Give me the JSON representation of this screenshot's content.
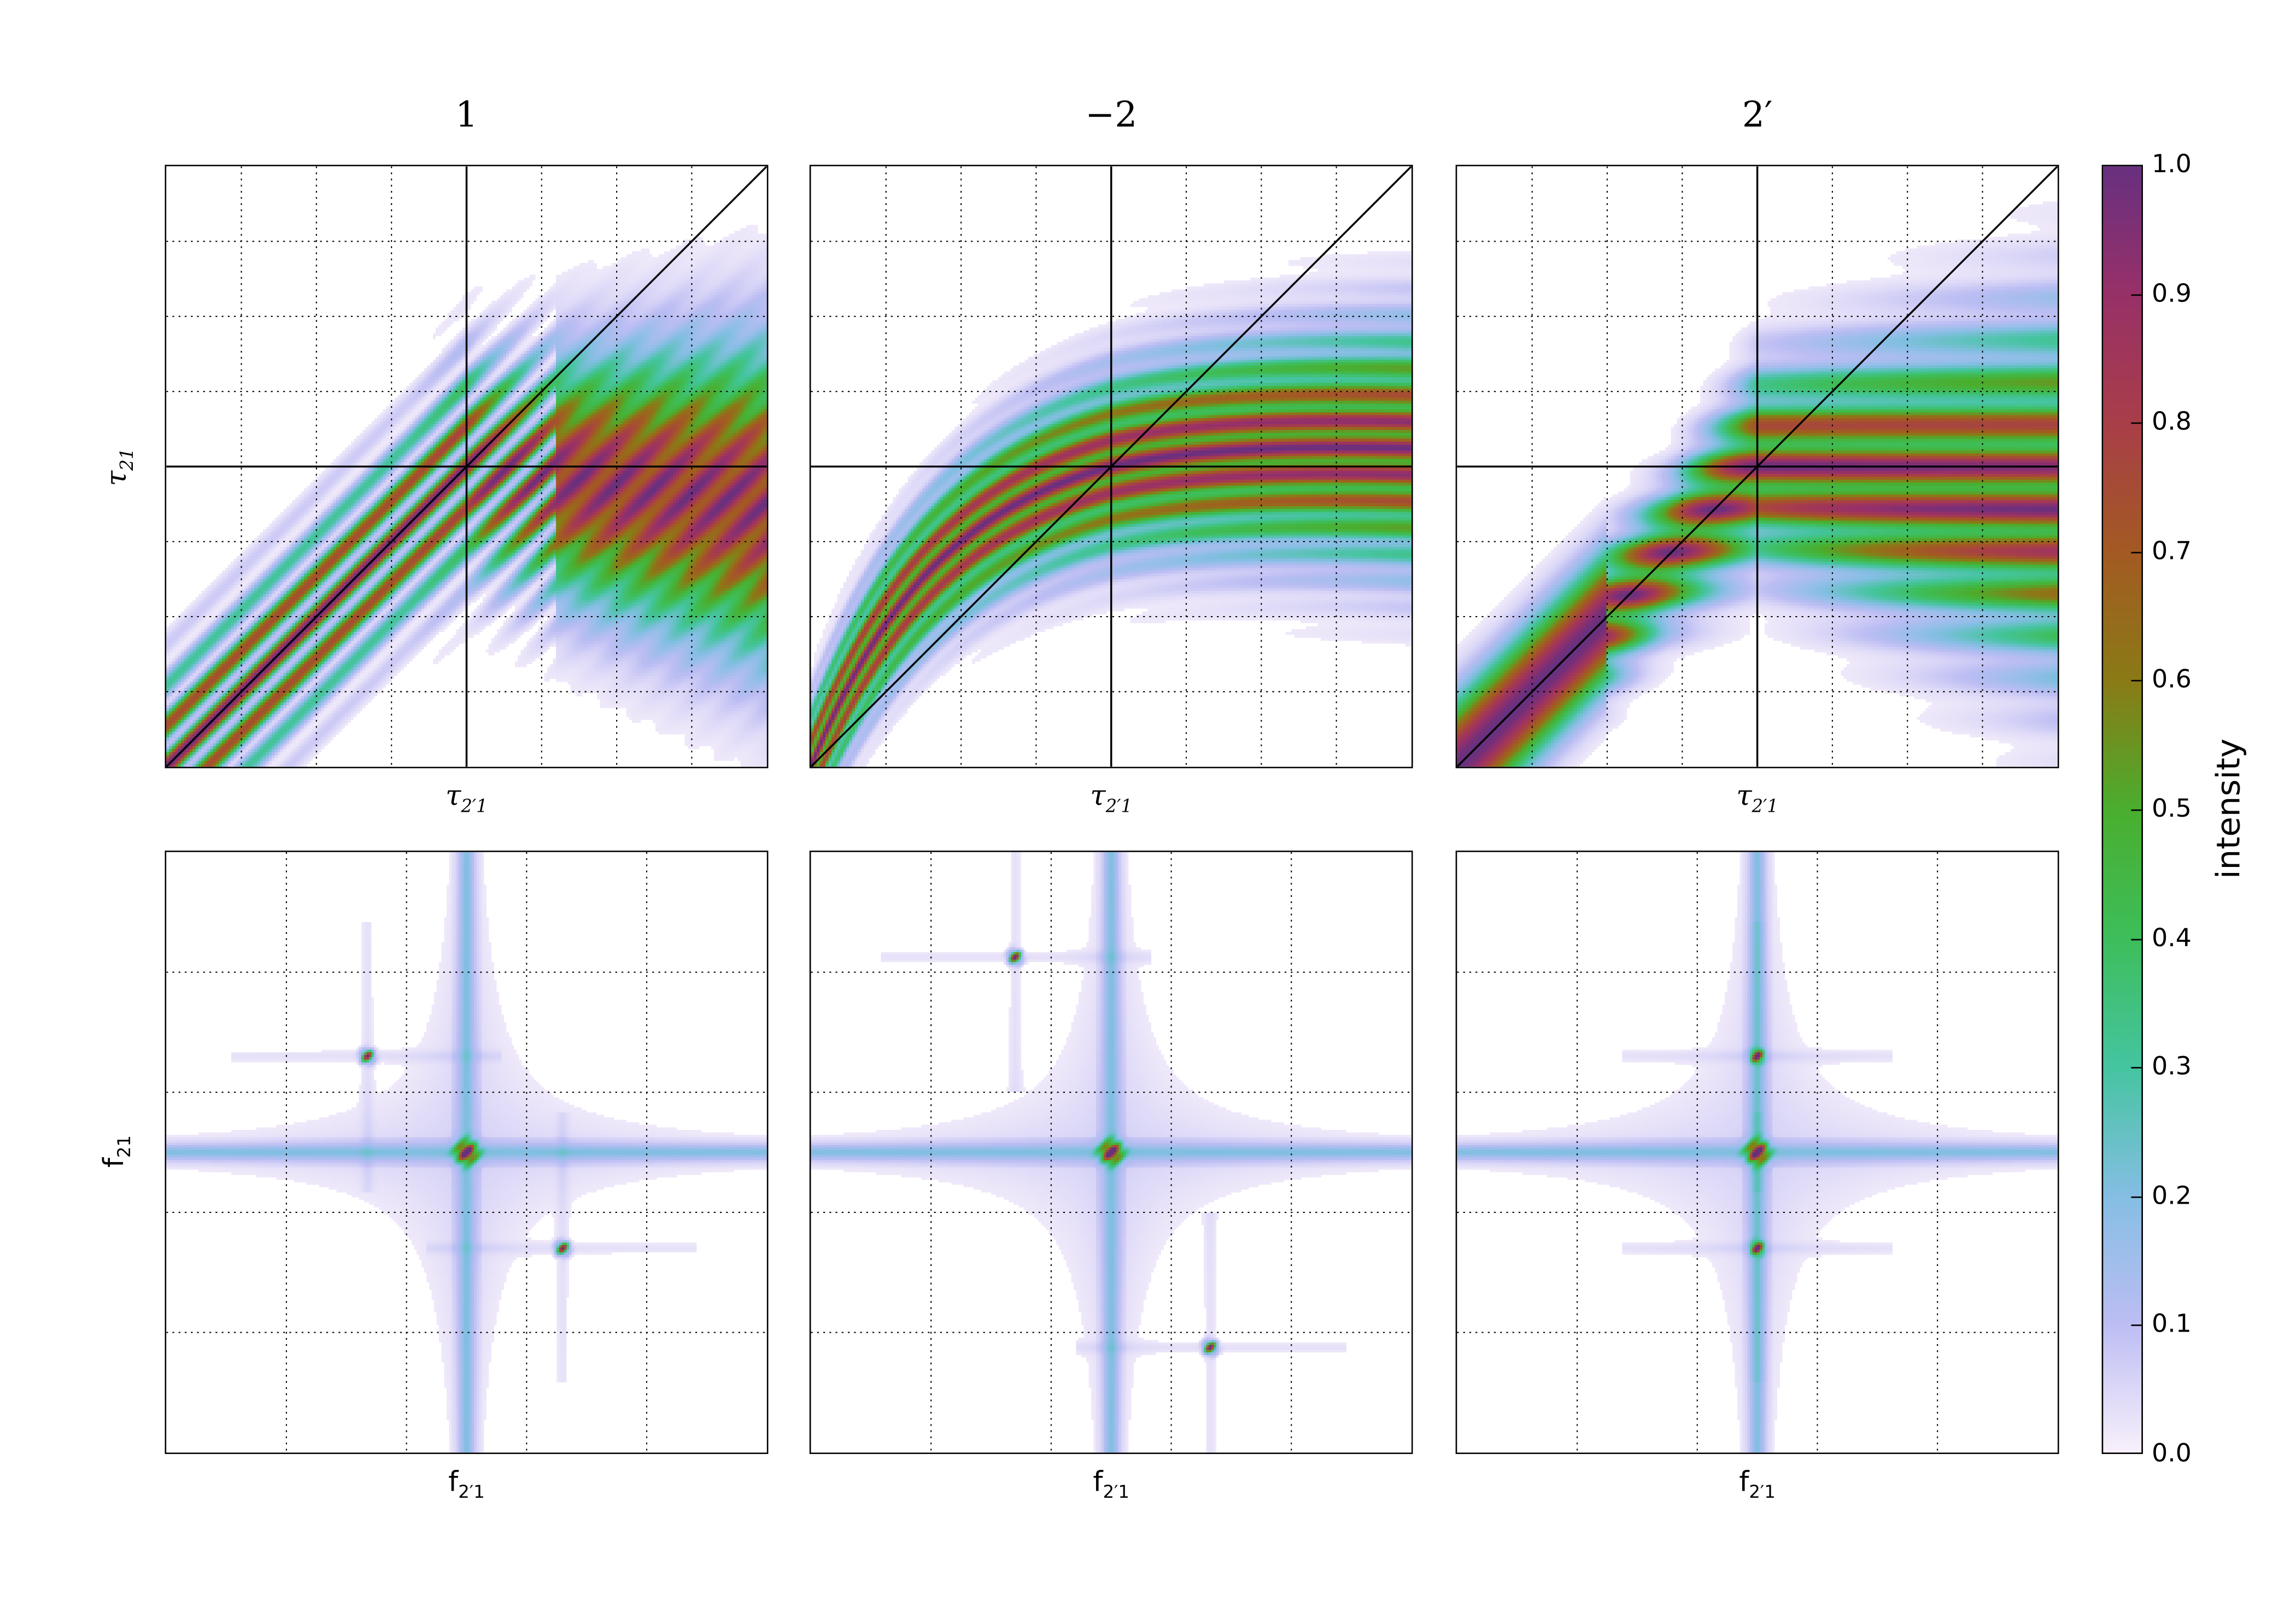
{
  "chart_data": {
    "type": "heatmap",
    "panels": [
      {
        "title": "1",
        "row": "time",
        "xlabel": "τ",
        "xlabel_sub": "2′1",
        "ylabel": "τ",
        "ylabel_sub": "21",
        "pattern": "diagonal-then-horizontal fringe band",
        "overlays": [
          "horizontal-center-line",
          "vertical-center-line",
          "diagonal-line"
        ]
      },
      {
        "title": "−2",
        "row": "time",
        "xlabel": "τ",
        "xlabel_sub": "2′1",
        "pattern": "curved band",
        "overlays": [
          "horizontal-center-line",
          "vertical-center-line",
          "diagonal-line"
        ]
      },
      {
        "title": "2′",
        "row": "time",
        "xlabel": "τ",
        "xlabel_sub": "2′1",
        "pattern": "diagonal band with horizontal stripes",
        "overlays": [
          "horizontal-center-line",
          "vertical-center-line",
          "diagonal-line"
        ]
      },
      {
        "row": "frequency",
        "xlabel": "f",
        "xlabel_sub": "2′1",
        "ylabel": "f",
        "ylabel_sub": "21",
        "peaks": [
          [
            0,
            0
          ],
          [
            -0.33,
            0.32
          ],
          [
            0.32,
            -0.32
          ]
        ]
      },
      {
        "row": "frequency",
        "xlabel": "f",
        "xlabel_sub": "2′1",
        "peaks": [
          [
            0,
            0
          ],
          [
            -0.32,
            0.65
          ],
          [
            0.33,
            -0.65
          ]
        ]
      },
      {
        "row": "frequency",
        "xlabel": "f",
        "xlabel_sub": "2′1",
        "peaks": [
          [
            0,
            0
          ],
          [
            0,
            0.32
          ],
          [
            0,
            -0.32
          ]
        ]
      }
    ],
    "grid": true,
    "colorbar": {
      "label": "intensity",
      "range": [
        0.0,
        1.0
      ],
      "ticks": [
        "0.0",
        "0.1",
        "0.2",
        "0.3",
        "0.4",
        "0.5",
        "0.6",
        "0.7",
        "0.8",
        "0.9",
        "1.0"
      ],
      "colors": [
        "#f8f0fb",
        "#bcbdf3",
        "#84bee3",
        "#45c4a0",
        "#3dbe5a",
        "#4aae2e",
        "#8a7a16",
        "#a35a22",
        "#a83e48",
        "#983068",
        "#67307f"
      ]
    }
  }
}
